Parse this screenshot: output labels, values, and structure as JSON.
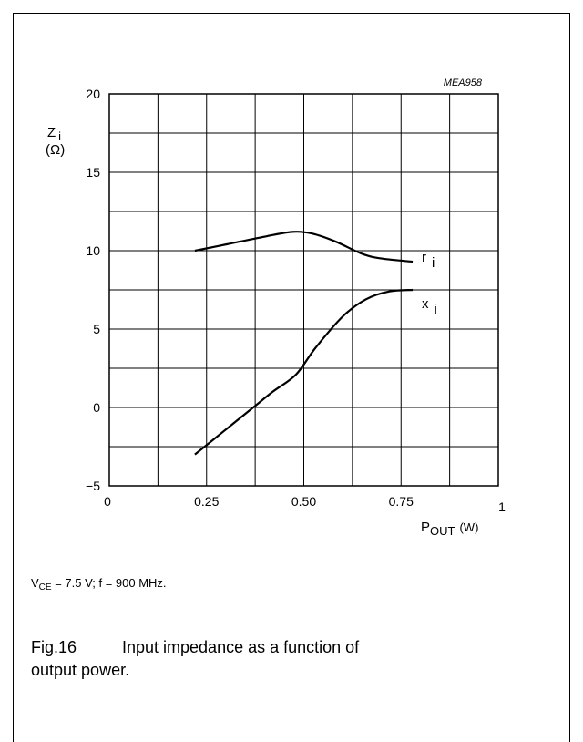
{
  "figure_code": "MEA958",
  "conditions": {
    "vce_symbol": "V",
    "vce_subscript": "CE",
    "vce_text": " = 7.5 V; f = 900 MHz."
  },
  "caption": {
    "number": "Fig.16",
    "text": "Input impedance as a function of output power."
  },
  "chart_data": {
    "type": "line",
    "title": "",
    "xlabel": {
      "main": "P",
      "subscript": "OUT",
      "unit": "(W)"
    },
    "ylabel": {
      "main": "Z",
      "subscript": "i",
      "unit": "(Ω)"
    },
    "xlim": [
      0,
      1
    ],
    "ylim": [
      -5,
      20
    ],
    "x_ticks": [
      {
        "value": 0,
        "label": "0"
      },
      {
        "value": 0.25,
        "label": "0.25"
      },
      {
        "value": 0.5,
        "label": "0.50"
      },
      {
        "value": 0.75,
        "label": "0.75"
      },
      {
        "value": 1,
        "label": "1"
      }
    ],
    "y_ticks": [
      {
        "value": 20,
        "label": "20"
      },
      {
        "value": 15,
        "label": "15"
      },
      {
        "value": 10,
        "label": "10"
      },
      {
        "value": 5,
        "label": "5"
      },
      {
        "value": 0,
        "label": "0"
      },
      {
        "value": -5,
        "label": "−5"
      }
    ],
    "grid": true,
    "grid_x_step": 0.125,
    "grid_y_step": 2.5,
    "series": [
      {
        "name": "r",
        "name_subscript": "i",
        "x": [
          0.22,
          0.3,
          0.4,
          0.47,
          0.52,
          0.58,
          0.65,
          0.7,
          0.78
        ],
        "y": [
          10.0,
          10.4,
          10.9,
          11.2,
          11.1,
          10.6,
          9.8,
          9.5,
          9.3
        ]
      },
      {
        "name": "x",
        "name_subscript": "i",
        "x": [
          0.22,
          0.3,
          0.37,
          0.42,
          0.48,
          0.53,
          0.6,
          0.66,
          0.72,
          0.78
        ],
        "y": [
          -3.0,
          -1.4,
          0.0,
          1.0,
          2.1,
          3.8,
          5.8,
          6.9,
          7.4,
          7.5
        ]
      }
    ]
  }
}
